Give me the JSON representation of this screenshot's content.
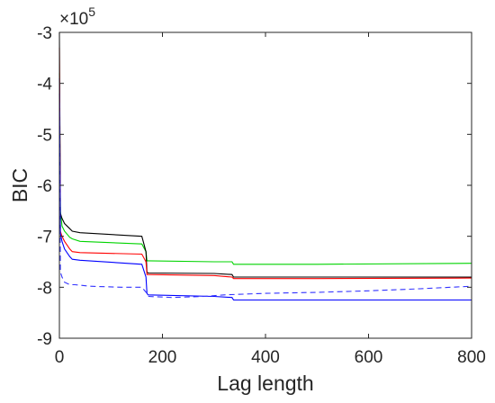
{
  "chart_data": {
    "type": "line",
    "title": "",
    "xlabel": "Lag length",
    "ylabel": "BIC",
    "xlim": [
      0,
      800
    ],
    "ylim": [
      -9,
      -3
    ],
    "xticks": [
      0,
      200,
      400,
      600,
      800
    ],
    "yticks": [
      -3,
      -4,
      -5,
      -6,
      -7,
      -8,
      -9
    ],
    "x_tick_labels": [
      "0",
      "200",
      "400",
      "600",
      "800"
    ],
    "y_tick_labels": [
      "-3",
      "-4",
      "-5",
      "-6",
      "-7",
      "-8",
      "-9"
    ],
    "y_multiplier_prefix": "×10",
    "y_multiplier_exponent": "5",
    "grid": false,
    "series": [
      {
        "color": "#00d400",
        "style": "solid",
        "x": [
          0,
          2,
          5,
          10,
          20,
          25,
          40,
          160,
          168,
          170,
          172,
          300,
          335,
          338,
          500,
          800
        ],
        "y": [
          -3.8,
          -6.5,
          -6.8,
          -6.9,
          -7.02,
          -7.05,
          -7.1,
          -7.15,
          -7.3,
          -7.48,
          -7.48,
          -7.5,
          -7.5,
          -7.55,
          -7.55,
          -7.53
        ]
      },
      {
        "color": "#000000",
        "style": "solid",
        "x": [
          0,
          2,
          5,
          10,
          20,
          25,
          40,
          160,
          168,
          170,
          172,
          300,
          335,
          338,
          500,
          800
        ],
        "y": [
          -3.0,
          -6.55,
          -6.65,
          -6.75,
          -6.85,
          -6.9,
          -6.93,
          -7.0,
          -7.3,
          -7.7,
          -7.72,
          -7.73,
          -7.75,
          -7.8,
          -7.8,
          -7.8
        ]
      },
      {
        "color": "#ff0000",
        "style": "solid",
        "x": [
          0,
          2,
          5,
          10,
          20,
          25,
          40,
          160,
          168,
          170,
          172,
          300,
          335,
          338,
          500,
          800
        ],
        "y": [
          -3.3,
          -6.9,
          -7.0,
          -7.1,
          -7.25,
          -7.3,
          -7.32,
          -7.35,
          -7.5,
          -7.75,
          -7.75,
          -7.77,
          -7.8,
          -7.83,
          -7.83,
          -7.82
        ]
      },
      {
        "color": "#0000ff",
        "style": "solid",
        "x": [
          0,
          2,
          5,
          10,
          20,
          25,
          40,
          160,
          168,
          170,
          172,
          300,
          335,
          338,
          500,
          800
        ],
        "y": [
          -3.9,
          -6.95,
          -7.1,
          -7.25,
          -7.4,
          -7.45,
          -7.47,
          -7.55,
          -7.8,
          -8.12,
          -8.15,
          -8.18,
          -8.2,
          -8.25,
          -8.25,
          -8.25
        ]
      },
      {
        "color": "#3333ff",
        "style": "dashed",
        "x": [
          0,
          2,
          5,
          10,
          20,
          30,
          60,
          120,
          160,
          170,
          172,
          220,
          280,
          320,
          400,
          500,
          600,
          700,
          800
        ],
        "y": [
          -4.2,
          -7.7,
          -7.8,
          -7.9,
          -7.95,
          -7.95,
          -7.98,
          -8.0,
          -8.0,
          -8.12,
          -8.18,
          -8.2,
          -8.18,
          -8.15,
          -8.12,
          -8.1,
          -8.07,
          -8.03,
          -7.98
        ]
      }
    ]
  }
}
